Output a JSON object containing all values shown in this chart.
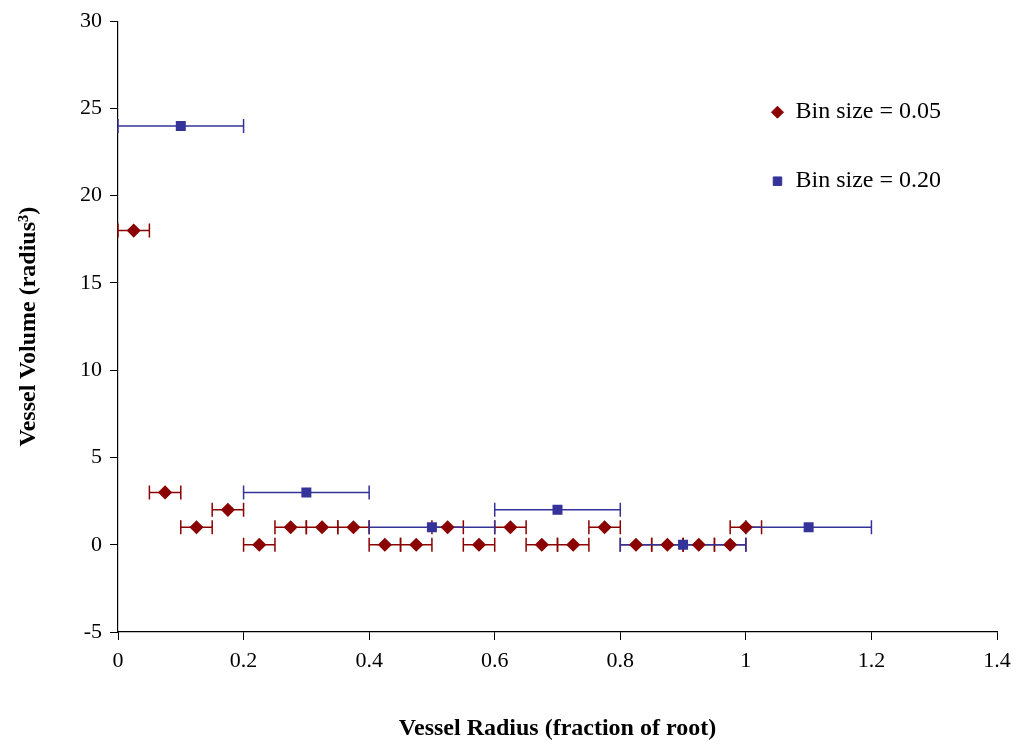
{
  "chart_data": {
    "type": "scatter",
    "xlabel": "Vessel Radius (fraction of root)",
    "ylabel": "Vessel Volume (radius³)",
    "xlim": [
      0,
      1.4
    ],
    "xticks": [
      0,
      0.2,
      0.4,
      0.6,
      0.8,
      1,
      1.2,
      1.4
    ],
    "ylim": [
      -5,
      30
    ],
    "yticks": [
      -5,
      0,
      5,
      10,
      15,
      20,
      25,
      30
    ],
    "grid": false,
    "legend": "top right",
    "series": [
      {
        "name": "Bin size = 0.05",
        "color": "#8b0000",
        "marker": "diamond",
        "x": [
          0.025,
          0.075,
          0.125,
          0.175,
          0.225,
          0.275,
          0.325,
          0.375,
          0.425,
          0.475,
          0.525,
          0.575,
          0.625,
          0.675,
          0.725,
          0.775,
          0.825,
          0.875,
          0.925,
          0.975,
          1.0
        ],
        "values": [
          18,
          3,
          1,
          2,
          0,
          1,
          1,
          1,
          0,
          0,
          1,
          0,
          1,
          0,
          0,
          1,
          0,
          0,
          0,
          0,
          1
        ],
        "xerrors": [
          0.025,
          0.025,
          0.025,
          0.025,
          0.025,
          0.025,
          0.025,
          0.025,
          0.025,
          0.025,
          0.025,
          0.025,
          0.025,
          0.025,
          0.025,
          0.025,
          0.025,
          0.025,
          0.025,
          0.025,
          0.025
        ]
      },
      {
        "name": "Bin size = 0.20",
        "color": "#333399",
        "marker": "square",
        "x": [
          0.1,
          0.3,
          0.5,
          0.7,
          0.9,
          1.1
        ],
        "values": [
          24,
          3,
          1,
          2,
          0,
          1
        ],
        "xerrors": [
          0.1,
          0.1,
          0.1,
          0.1,
          0.1,
          0.1
        ]
      }
    ]
  }
}
